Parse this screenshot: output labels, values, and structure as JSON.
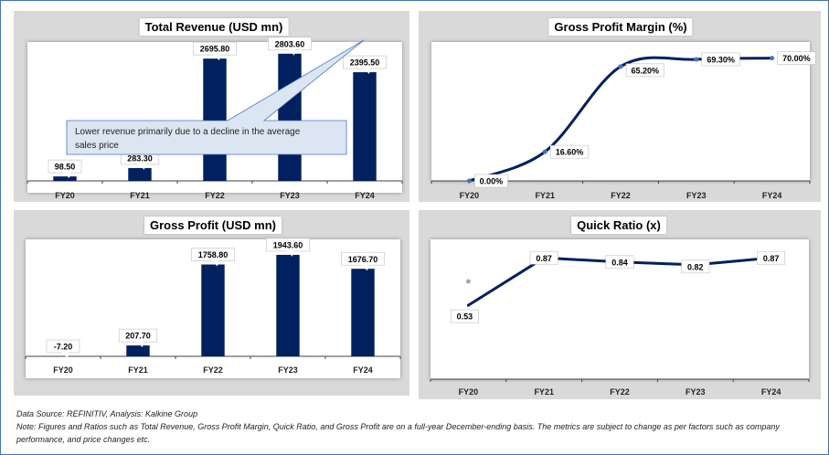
{
  "footer": {
    "source": "Data Source: REFINITIV, Analysis: Kalkine Group",
    "note": "Note: Figures and Ratios such as Total Revenue, Gross Profit Margin, Quick Ratio, and Gross Profit are on a full-year December-ending basis. The metrics are subject to change as per factors such as company performance, and price changes etc."
  },
  "colors": {
    "bar": "#002060",
    "line": "#002060",
    "marker": "#4472c4",
    "panel_bg": "#d9d9d9",
    "callout_bg": "#dce6f2",
    "callout_border": "#4472c4"
  },
  "chart_data": [
    {
      "id": "revenue",
      "type": "bar",
      "title": "Total Revenue (USD mn)",
      "categories": [
        "FY20",
        "FY21",
        "FY22",
        "FY23",
        "FY24"
      ],
      "values": [
        98.5,
        283.3,
        2695.8,
        2803.6,
        2395.5
      ],
      "labels": [
        "98.50",
        "283.30",
        "2695.80",
        "2803.60",
        "2395.50"
      ],
      "ylim": [
        0,
        2900
      ],
      "grid": false,
      "annotation": {
        "text": "Lower revenue primarily due to a decline in the average sales price",
        "target": "FY24"
      }
    },
    {
      "id": "gpm",
      "type": "line",
      "title": "Gross Profit Margin (%)",
      "categories": [
        "FY20",
        "FY21",
        "FY22",
        "FY23",
        "FY24"
      ],
      "values": [
        0.0,
        16.6,
        65.2,
        69.3,
        70.0
      ],
      "labels": [
        "0.00%",
        "16.60%",
        "65.20%",
        "69.30%",
        "70.00%"
      ],
      "ylim": [
        0,
        75
      ],
      "smooth": true,
      "grid": false
    },
    {
      "id": "gross_profit",
      "type": "bar",
      "title": "Gross Profit (USD mn)",
      "categories": [
        "FY20",
        "FY21",
        "FY22",
        "FY23",
        "FY24"
      ],
      "values": [
        -7.2,
        207.7,
        1758.8,
        1943.6,
        1676.7
      ],
      "labels": [
        "-7.20",
        "207.70",
        "1758.80",
        "1943.60",
        "1676.70"
      ],
      "ylim": [
        -20,
        2100
      ],
      "grid": false
    },
    {
      "id": "quick_ratio",
      "type": "line",
      "title": "Quick Ratio (x)",
      "categories": [
        "FY20",
        "FY21",
        "FY22",
        "FY23",
        "FY24"
      ],
      "values": [
        0.53,
        0.87,
        0.84,
        0.82,
        0.87
      ],
      "labels": [
        "0.53",
        "0.87",
        "0.84",
        "0.82",
        "0.87"
      ],
      "ylim": [
        0,
        0.95
      ],
      "smooth": false,
      "grid": false
    }
  ]
}
